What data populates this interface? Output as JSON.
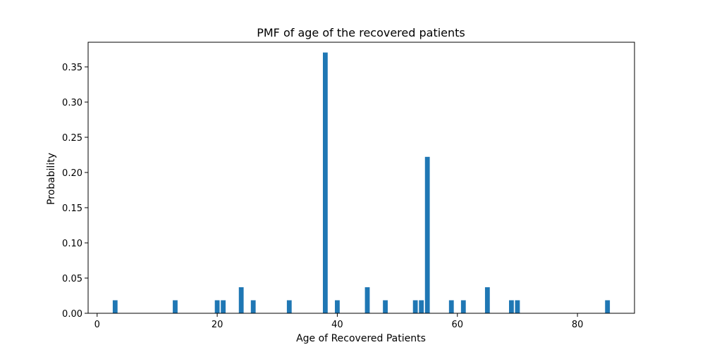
{
  "chart_data": {
    "type": "bar",
    "title": "PMF of age of the recovered patients",
    "xlabel": "Age of Recovered Patients",
    "ylabel": "Probability",
    "xlim": [
      -1.5,
      89.5
    ],
    "ylim": [
      0,
      0.385
    ],
    "x": [
      3,
      13,
      20,
      21,
      24,
      26,
      32,
      38,
      40,
      45,
      48,
      53,
      54,
      55,
      59,
      61,
      65,
      69,
      70,
      85
    ],
    "values": [
      0.0185,
      0.0185,
      0.0185,
      0.0185,
      0.037,
      0.0185,
      0.0185,
      0.3704,
      0.0185,
      0.037,
      0.0185,
      0.0185,
      0.0185,
      0.2222,
      0.0185,
      0.0185,
      0.037,
      0.0185,
      0.0185,
      0.0185
    ],
    "bar_width": 0.8,
    "bar_color": "#1f77b4",
    "xticks": [
      0,
      20,
      40,
      60,
      80
    ],
    "xtick_labels": [
      "0",
      "20",
      "40",
      "60",
      "80"
    ],
    "yticks": [
      0.0,
      0.05,
      0.1,
      0.15,
      0.2,
      0.25,
      0.3,
      0.35
    ],
    "ytick_labels": [
      "0.00",
      "0.05",
      "0.10",
      "0.15",
      "0.20",
      "0.25",
      "0.30",
      "0.35"
    ],
    "grid": false,
    "legend": "none"
  }
}
